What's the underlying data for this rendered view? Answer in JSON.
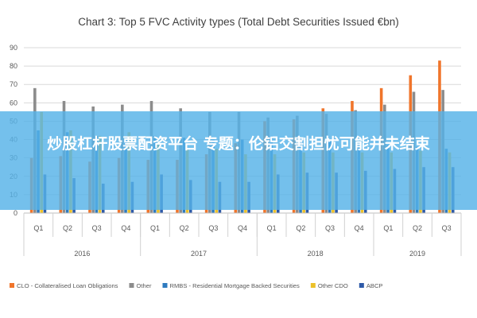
{
  "chart_data": {
    "type": "bar",
    "title": "Chart 3: Top 5 FVC Activity types (Total Debt Securities Issued €bn)",
    "ylim": [
      0,
      90
    ],
    "yticks": [
      0,
      10,
      20,
      30,
      40,
      50,
      60,
      70,
      80,
      90
    ],
    "grid": true,
    "legend_position": "bottom",
    "categories": [
      "Q1",
      "Q2",
      "Q3",
      "Q4",
      "Q1",
      "Q2",
      "Q3",
      "Q4",
      "Q1",
      "Q2",
      "Q3",
      "Q4",
      "Q1",
      "Q2",
      "Q3"
    ],
    "years": [
      {
        "label": "2016",
        "count": 4
      },
      {
        "label": "2017",
        "count": 4
      },
      {
        "label": "2018",
        "count": 4
      },
      {
        "label": "2019",
        "count": 3
      }
    ],
    "series": [
      {
        "name": "CLO - Collateralised Loan Obligations",
        "color": "#f0752b",
        "values": [
          30,
          31,
          28,
          30,
          29,
          29,
          32,
          38,
          50,
          51,
          57,
          61,
          68,
          75,
          83
        ]
      },
      {
        "name": "Other",
        "color": "#8c8c8c",
        "values": [
          68,
          61,
          58,
          59,
          61,
          57,
          55,
          55,
          52,
          53,
          54,
          56,
          59,
          66,
          67
        ]
      },
      {
        "name": "RMBS - Residential Mortgage Backed Securities",
        "color": "#2f7bbf",
        "values": [
          45,
          44,
          42,
          40,
          42,
          41,
          40,
          40,
          42,
          40,
          40,
          38,
          37,
          36,
          35
        ]
      },
      {
        "name": "Other CDO",
        "color": "#ecc12a",
        "values": [
          55,
          45,
          42,
          44,
          38,
          35,
          35,
          32,
          32,
          33,
          33,
          33,
          33,
          34,
          33
        ]
      },
      {
        "name": "ABCP",
        "color": "#2e5aa8",
        "values": [
          21,
          19,
          16,
          17,
          21,
          18,
          17,
          17,
          21,
          22,
          22,
          23,
          24,
          25,
          25
        ]
      }
    ]
  },
  "banner": {
    "text": "炒股杠杆股票配资平台 专题：伦铝交割担忧可能并未结束"
  }
}
